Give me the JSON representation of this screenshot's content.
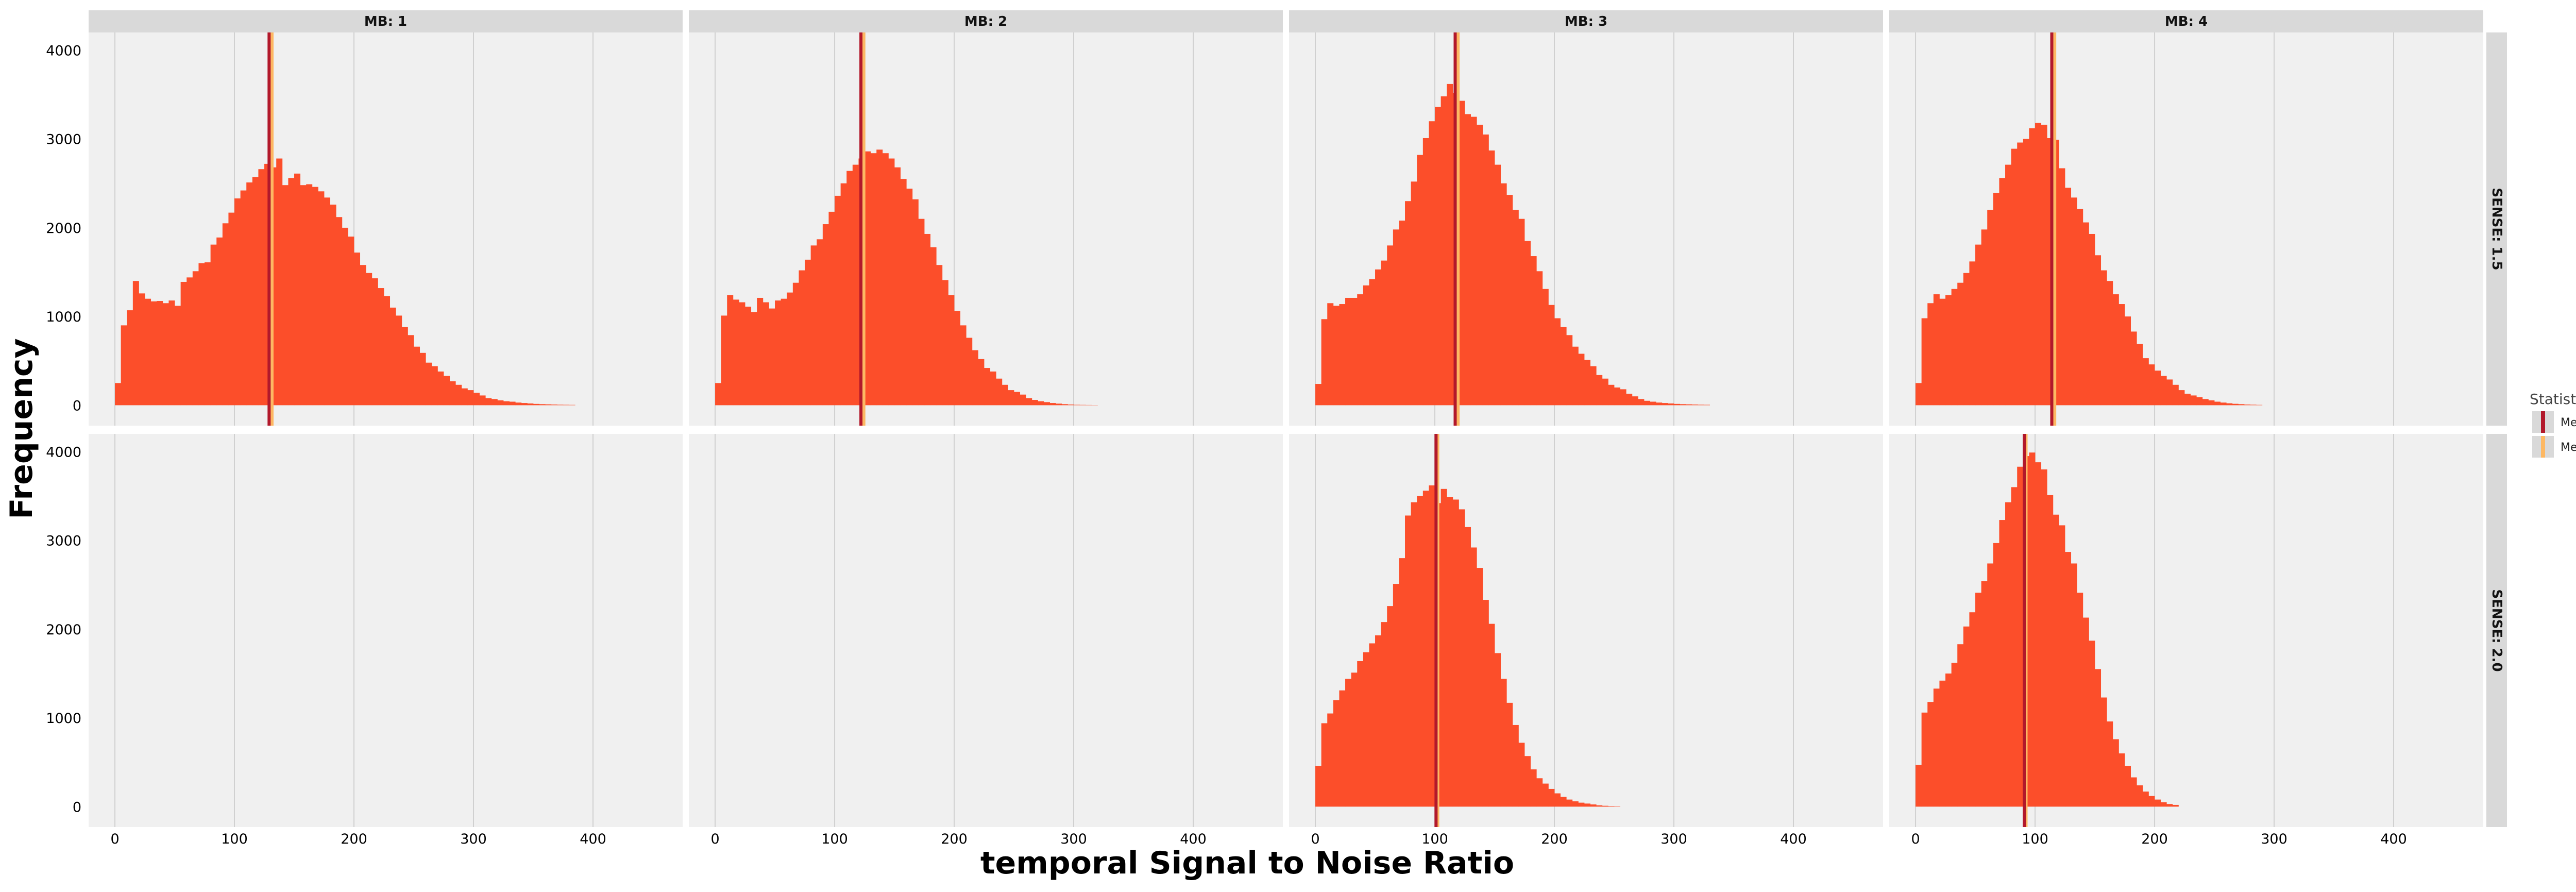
{
  "chart_data": {
    "type": "histogram-facet",
    "xlabel": "temporal Signal to Noise Ratio",
    "ylabel": "Frequency",
    "x_ticks": [
      0,
      100,
      200,
      300,
      400
    ],
    "y_ticks": [
      0,
      1000,
      2000,
      3000,
      4000
    ],
    "xlim": [
      -22,
      475
    ],
    "ylim": [
      -230,
      4200
    ],
    "bin_width": 5,
    "grid": true,
    "legend": {
      "title": "Statistic",
      "placement": "right",
      "entries": [
        {
          "label": "Mean",
          "color": "#b2182b"
        },
        {
          "label": "Median",
          "color": "#fdb863"
        }
      ]
    },
    "colors": {
      "bar": "#fc4e2a",
      "panel_bg": "#f0f0f0",
      "strip_bg": "#d9d9d9",
      "grid": "#d0d0d0",
      "mean": "#b2182b",
      "median": "#fdb863"
    },
    "col_labels": [
      "MB: 1",
      "MB: 2",
      "MB: 3",
      "MB: 4"
    ],
    "row_labels": [
      "SENSE: 1.5",
      "SENSE: 2.0"
    ],
    "panels": [
      {
        "col": "MB: 1",
        "row": "SENSE: 1.5",
        "mean": 129,
        "median": 131,
        "hist": {
          "start": 0,
          "counts": [
            250,
            900,
            1070,
            1400,
            1260,
            1200,
            1170,
            1175,
            1150,
            1180,
            1120,
            1390,
            1440,
            1510,
            1600,
            1610,
            1810,
            1890,
            2050,
            2170,
            2330,
            2420,
            2510,
            2570,
            2660,
            2720,
            2680,
            2780,
            2480,
            2560,
            2610,
            2480,
            2490,
            2460,
            2410,
            2340,
            2260,
            2120,
            2000,
            1900,
            1720,
            1580,
            1490,
            1430,
            1320,
            1230,
            1100,
            1010,
            880,
            790,
            660,
            590,
            480,
            440,
            380,
            330,
            270,
            230,
            190,
            170,
            140,
            110,
            80,
            70,
            55,
            45,
            40,
            30,
            25,
            20,
            15,
            12,
            10,
            8,
            6,
            5,
            4
          ]
        }
      },
      {
        "col": "MB: 2",
        "row": "SENSE: 1.5",
        "mean": 122,
        "median": 124,
        "hist": {
          "start": 0,
          "counts": [
            250,
            1010,
            1240,
            1190,
            1160,
            1110,
            1050,
            1210,
            1160,
            1090,
            1180,
            1200,
            1270,
            1380,
            1520,
            1640,
            1800,
            1870,
            2040,
            2180,
            2360,
            2500,
            2640,
            2710,
            2780,
            2860,
            2840,
            2880,
            2840,
            2780,
            2680,
            2550,
            2440,
            2320,
            2100,
            1930,
            1780,
            1580,
            1410,
            1240,
            1060,
            900,
            760,
            620,
            520,
            420,
            380,
            300,
            230,
            170,
            150,
            120,
            80,
            60,
            45,
            35,
            25,
            18,
            12,
            8,
            5,
            4,
            3,
            2
          ]
        }
      },
      {
        "col": "MB: 3",
        "row": "SENSE: 1.5",
        "mean": 117,
        "median": 119,
        "hist": {
          "start": 0,
          "counts": [
            240,
            970,
            1150,
            1120,
            1140,
            1210,
            1210,
            1250,
            1350,
            1420,
            1530,
            1630,
            1800,
            1980,
            2080,
            2300,
            2520,
            2820,
            3010,
            3200,
            3360,
            3480,
            3620,
            3520,
            3430,
            3280,
            3250,
            3160,
            3050,
            2870,
            2710,
            2500,
            2370,
            2200,
            2100,
            1850,
            1680,
            1510,
            1310,
            1130,
            980,
            880,
            790,
            660,
            580,
            510,
            440,
            340,
            300,
            230,
            200,
            180,
            130,
            100,
            70,
            50,
            40,
            30,
            25,
            20,
            15,
            12,
            10,
            8,
            6,
            5
          ]
        }
      },
      {
        "col": "MB: 4",
        "row": "SENSE: 1.5",
        "mean": 114,
        "median": 116,
        "hist": {
          "start": 0,
          "counts": [
            250,
            980,
            1150,
            1250,
            1200,
            1240,
            1310,
            1380,
            1490,
            1620,
            1810,
            1980,
            2200,
            2390,
            2560,
            2710,
            2890,
            2960,
            3000,
            3120,
            3180,
            3160,
            3010,
            2990,
            2670,
            2450,
            2340,
            2210,
            2060,
            1930,
            1690,
            1520,
            1400,
            1250,
            1140,
            1000,
            830,
            690,
            530,
            460,
            390,
            330,
            290,
            230,
            170,
            130,
            110,
            90,
            70,
            55,
            40,
            30,
            22,
            16,
            12,
            8,
            6,
            4
          ]
        }
      },
      {
        "col": "MB: 1",
        "row": "SENSE: 2.0",
        "mean": null,
        "median": null,
        "hist": {
          "start": 0,
          "counts": []
        }
      },
      {
        "col": "MB: 2",
        "row": "SENSE: 2.0",
        "mean": null,
        "median": null,
        "hist": {
          "start": 0,
          "counts": []
        }
      },
      {
        "col": "MB: 3",
        "row": "SENSE: 2.0",
        "mean": 101,
        "median": 102,
        "hist": {
          "start": 0,
          "counts": [
            460,
            940,
            1050,
            1200,
            1310,
            1440,
            1510,
            1640,
            1740,
            1840,
            1930,
            2080,
            2260,
            2510,
            2800,
            3280,
            3430,
            3500,
            3560,
            3620,
            3420,
            3580,
            3490,
            3460,
            3350,
            3150,
            2920,
            2690,
            2330,
            2060,
            1730,
            1440,
            1170,
            920,
            720,
            570,
            420,
            320,
            260,
            200,
            150,
            110,
            80,
            60,
            45,
            35,
            25,
            15,
            10,
            6,
            4
          ]
        }
      },
      {
        "col": "MB: 4",
        "row": "SENSE: 2.0",
        "mean": 91,
        "median": 92,
        "hist": {
          "start": 0,
          "counts": [
            470,
            1060,
            1180,
            1330,
            1420,
            1500,
            1620,
            1830,
            2030,
            2190,
            2410,
            2540,
            2740,
            2970,
            3230,
            3430,
            3600,
            3830,
            3950,
            3990,
            3880,
            3800,
            3510,
            3290,
            3170,
            2870,
            2740,
            2410,
            2130,
            1870,
            1550,
            1230,
            960,
            760,
            600,
            460,
            330,
            240,
            170,
            120,
            80,
            50,
            30,
            20
          ]
        }
      }
    ]
  }
}
